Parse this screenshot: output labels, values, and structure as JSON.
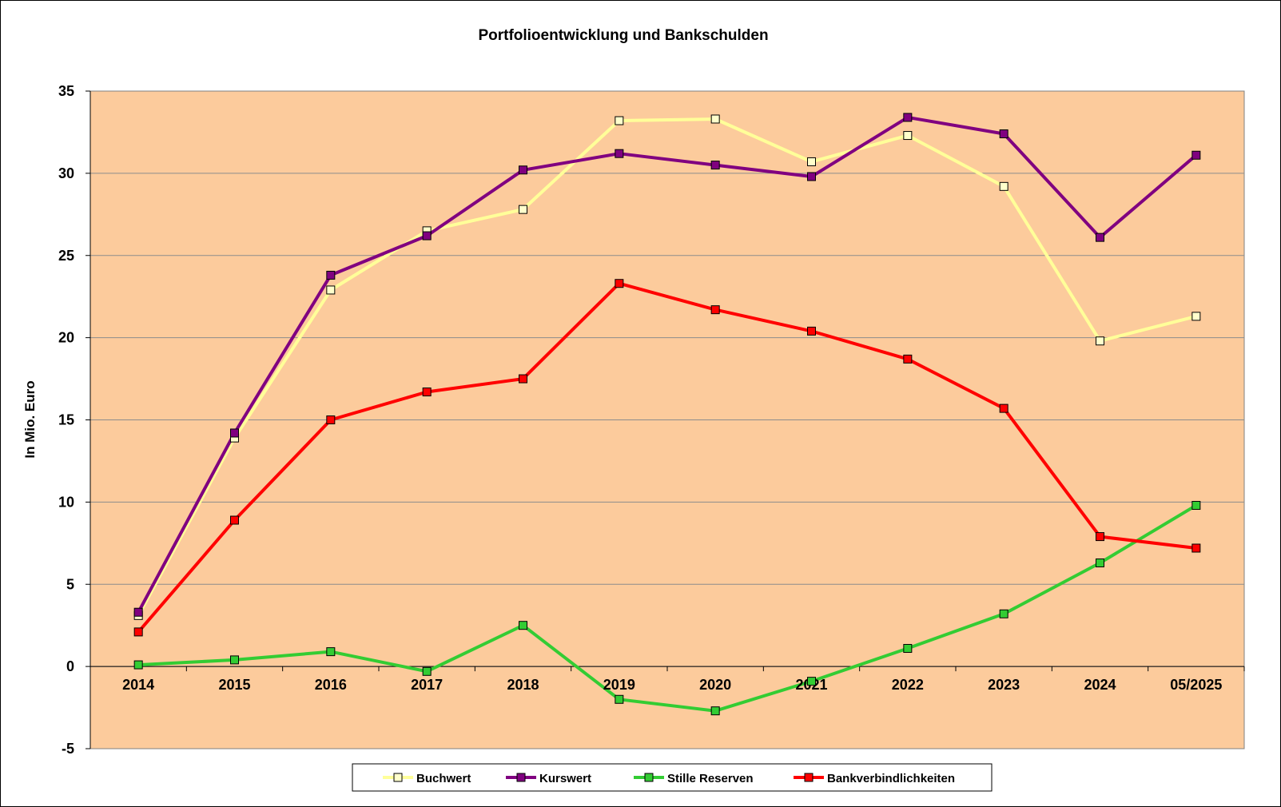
{
  "chart_data": {
    "type": "line",
    "title": "Portfolioentwicklung  und  Bankschulden",
    "ylabel": "In Mio. Euro",
    "xlabel": "",
    "ylim": [
      -5,
      35
    ],
    "yticks": [
      -5,
      0,
      5,
      10,
      15,
      20,
      25,
      30,
      35
    ],
    "grid": "horizontal",
    "legend_position": "bottom",
    "plot_background": "#FCCB9C",
    "categories": [
      "2014",
      "2015",
      "2016",
      "2017",
      "2018",
      "2019",
      "2020",
      "2021",
      "2022",
      "2023",
      "2024",
      "05/2025"
    ],
    "series": [
      {
        "name": "Buchwert",
        "color": "#FFFF99",
        "marker_fill": "#FFFFCC",
        "values": [
          3.1,
          13.9,
          22.9,
          26.5,
          27.8,
          33.2,
          33.3,
          30.7,
          32.3,
          29.2,
          19.8,
          21.3
        ]
      },
      {
        "name": "Kurswert",
        "color": "#800080",
        "marker_fill": "#800080",
        "values": [
          3.3,
          14.2,
          23.8,
          26.2,
          30.2,
          31.2,
          30.5,
          29.8,
          33.4,
          32.4,
          26.1,
          31.1
        ]
      },
      {
        "name": "Stille Reserven",
        "color": "#33CC33",
        "marker_fill": "#33CC33",
        "values": [
          0.1,
          0.4,
          0.9,
          -0.3,
          2.5,
          -2.0,
          -2.7,
          -0.9,
          1.1,
          3.2,
          6.3,
          9.8
        ]
      },
      {
        "name": "Bankverbindlichkeiten",
        "color": "#FF0000",
        "marker_fill": "#FF0000",
        "values": [
          2.1,
          8.9,
          15.0,
          16.7,
          17.5,
          23.3,
          21.7,
          20.4,
          18.7,
          15.7,
          7.9,
          7.2
        ]
      }
    ]
  }
}
